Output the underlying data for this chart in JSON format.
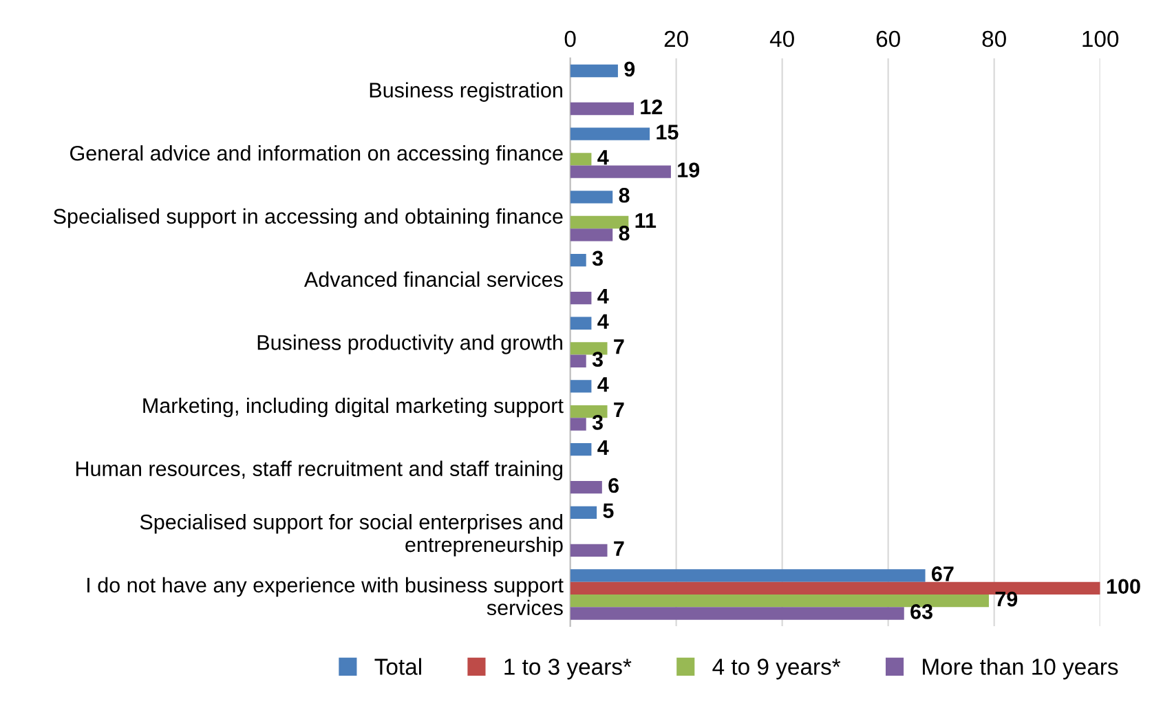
{
  "chart_data": {
    "type": "bar",
    "orientation": "horizontal",
    "categories": [
      "Business registration",
      "General advice and information on accessing finance",
      "Specialised support in accessing and obtaining finance",
      "Advanced financial services",
      "Business productivity and growth",
      "Marketing, including digital marketing support",
      "Human resources, staff recruitment and staff training",
      "Specialised support for social enterprises and\nentrepreneurship",
      "I do not have any experience with business support\nservices"
    ],
    "series": [
      {
        "name": "Total",
        "color": "#4a7ebb",
        "values": [
          9,
          15,
          8,
          3,
          4,
          4,
          4,
          5,
          67
        ]
      },
      {
        "name": "1 to 3 years*",
        "color": "#be4b48",
        "values": [
          null,
          null,
          null,
          null,
          null,
          null,
          null,
          null,
          100
        ]
      },
      {
        "name": "4 to 9 years*",
        "color": "#98b954",
        "values": [
          null,
          4,
          11,
          null,
          7,
          7,
          null,
          null,
          79
        ]
      },
      {
        "name": "More than 10 years",
        "color": "#7d60a0",
        "values": [
          12,
          19,
          8,
          4,
          3,
          3,
          6,
          7,
          63
        ]
      }
    ],
    "xlim": [
      0,
      100
    ],
    "xticks": [
      0,
      20,
      40,
      60,
      80,
      100
    ],
    "grid": "x",
    "legend": "bottom",
    "data_labels": true
  }
}
